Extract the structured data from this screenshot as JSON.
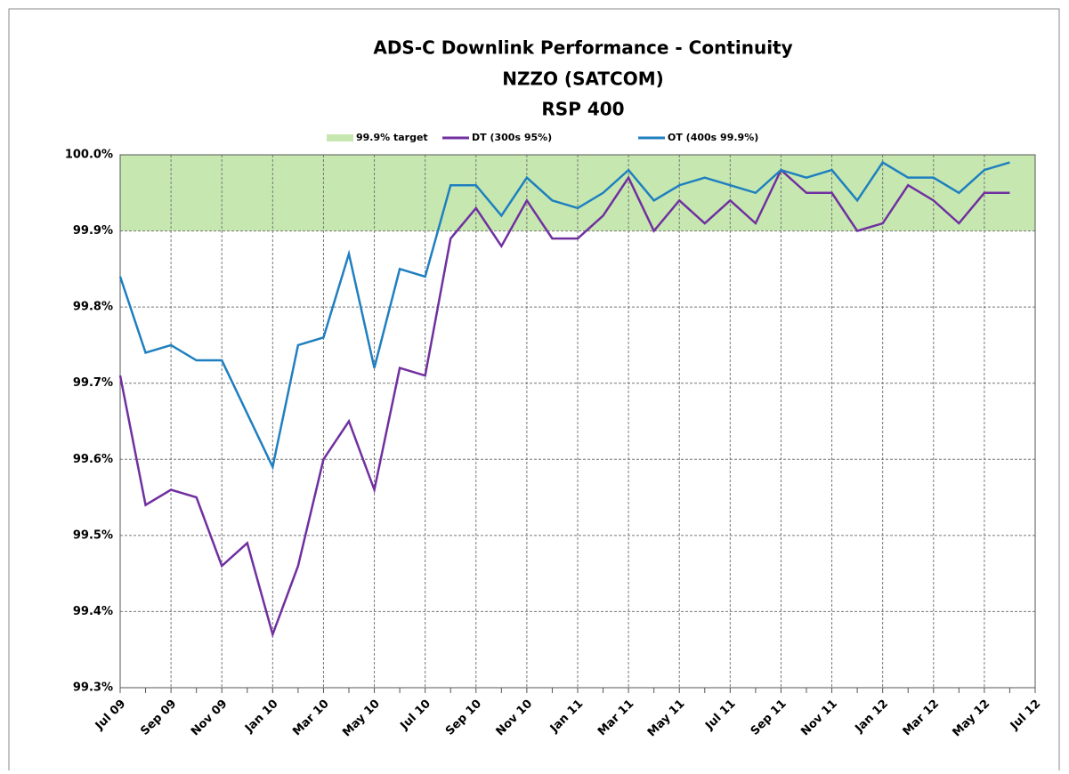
{
  "chart_data": {
    "type": "line",
    "title": "ADS-C Downlink Performance - Continuity",
    "subtitle": "NZZO (SATCOM)",
    "subtitle2": "RSP 400",
    "categories": [
      "Jul 09",
      null,
      "Sep 09",
      null,
      "Nov 09",
      null,
      "Jan 10",
      null,
      "Mar 10",
      null,
      "May 10",
      null,
      "Jul 10",
      null,
      "Sep 10",
      null,
      "Nov 10",
      null,
      "Jan 11",
      null,
      "Mar 11",
      null,
      "May 11",
      null,
      "Jul 11",
      null,
      "Sep 11",
      null,
      "Nov 11",
      null,
      "Jan 12",
      null,
      "Mar 12",
      null,
      "May 12",
      null,
      "Jul 12"
    ],
    "target": {
      "name": "99.9% target",
      "color": "#c6e8b0",
      "range": [
        99.9,
        100
      ]
    },
    "series": [
      {
        "name": "DT (300s 95%)",
        "color": "#7030a0",
        "values": [
          99.71,
          99.54,
          99.56,
          99.55,
          99.46,
          99.49,
          99.37,
          99.46,
          99.6,
          99.65,
          99.56,
          99.72,
          99.71,
          99.89,
          99.93,
          99.88,
          99.94,
          99.89,
          99.89,
          99.92,
          99.97,
          99.9,
          99.94,
          99.91,
          99.94,
          99.91,
          99.98,
          99.95,
          99.95,
          99.9,
          99.91,
          99.96,
          99.94,
          99.91,
          99.95,
          99.95,
          null
        ]
      },
      {
        "name": "OT (400s 99.9%)",
        "color": "#1f7fc0",
        "values": [
          99.84,
          99.74,
          99.75,
          99.73,
          99.73,
          99.66,
          99.59,
          99.75,
          99.76,
          99.87,
          99.72,
          99.85,
          99.84,
          99.96,
          99.96,
          99.92,
          99.97,
          99.94,
          99.93,
          99.95,
          99.98,
          99.94,
          99.96,
          99.97,
          99.96,
          99.95,
          99.98,
          99.97,
          99.98,
          99.94,
          99.99,
          99.97,
          99.97,
          99.95,
          99.98,
          99.99,
          null
        ]
      }
    ],
    "ylim": [
      99.3,
      100
    ],
    "yticks": [
      {
        "value": 99.3,
        "label": "99.3%"
      },
      {
        "value": 99.4,
        "label": "99.4%"
      },
      {
        "value": 99.5,
        "label": "99.5%"
      },
      {
        "value": 99.6,
        "label": "99.6%"
      },
      {
        "value": 99.7,
        "label": "99.7%"
      },
      {
        "value": 99.8,
        "label": "99.8%"
      },
      {
        "value": 99.9,
        "label": "99.9%"
      },
      {
        "value": 100,
        "label": "100.0%"
      }
    ],
    "grid": true
  }
}
